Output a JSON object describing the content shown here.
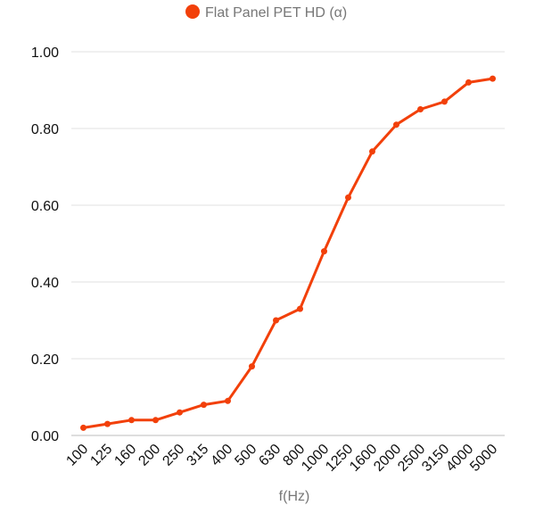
{
  "chart_data": {
    "type": "line",
    "xlabel": "f(Hz)",
    "ylabel": "",
    "categories": [
      "100",
      "125",
      "160",
      "200",
      "250",
      "315",
      "400",
      "500",
      "630",
      "800",
      "1000",
      "1250",
      "1600",
      "2000",
      "2500",
      "3150",
      "4000",
      "5000"
    ],
    "series": [
      {
        "name": "Flat Panel PET HD (α)",
        "values": [
          0.02,
          0.03,
          0.04,
          0.04,
          0.06,
          0.08,
          0.09,
          0.18,
          0.3,
          0.33,
          0.48,
          0.62,
          0.74,
          0.81,
          0.85,
          0.87,
          0.92,
          0.93
        ],
        "color": "#f2400a"
      }
    ],
    "ylim": [
      0,
      1
    ],
    "yticks": [
      "0.00",
      "0.20",
      "0.40",
      "0.60",
      "0.80",
      "1.00"
    ],
    "grid": true,
    "legend_position": "top-center",
    "markers": true
  }
}
